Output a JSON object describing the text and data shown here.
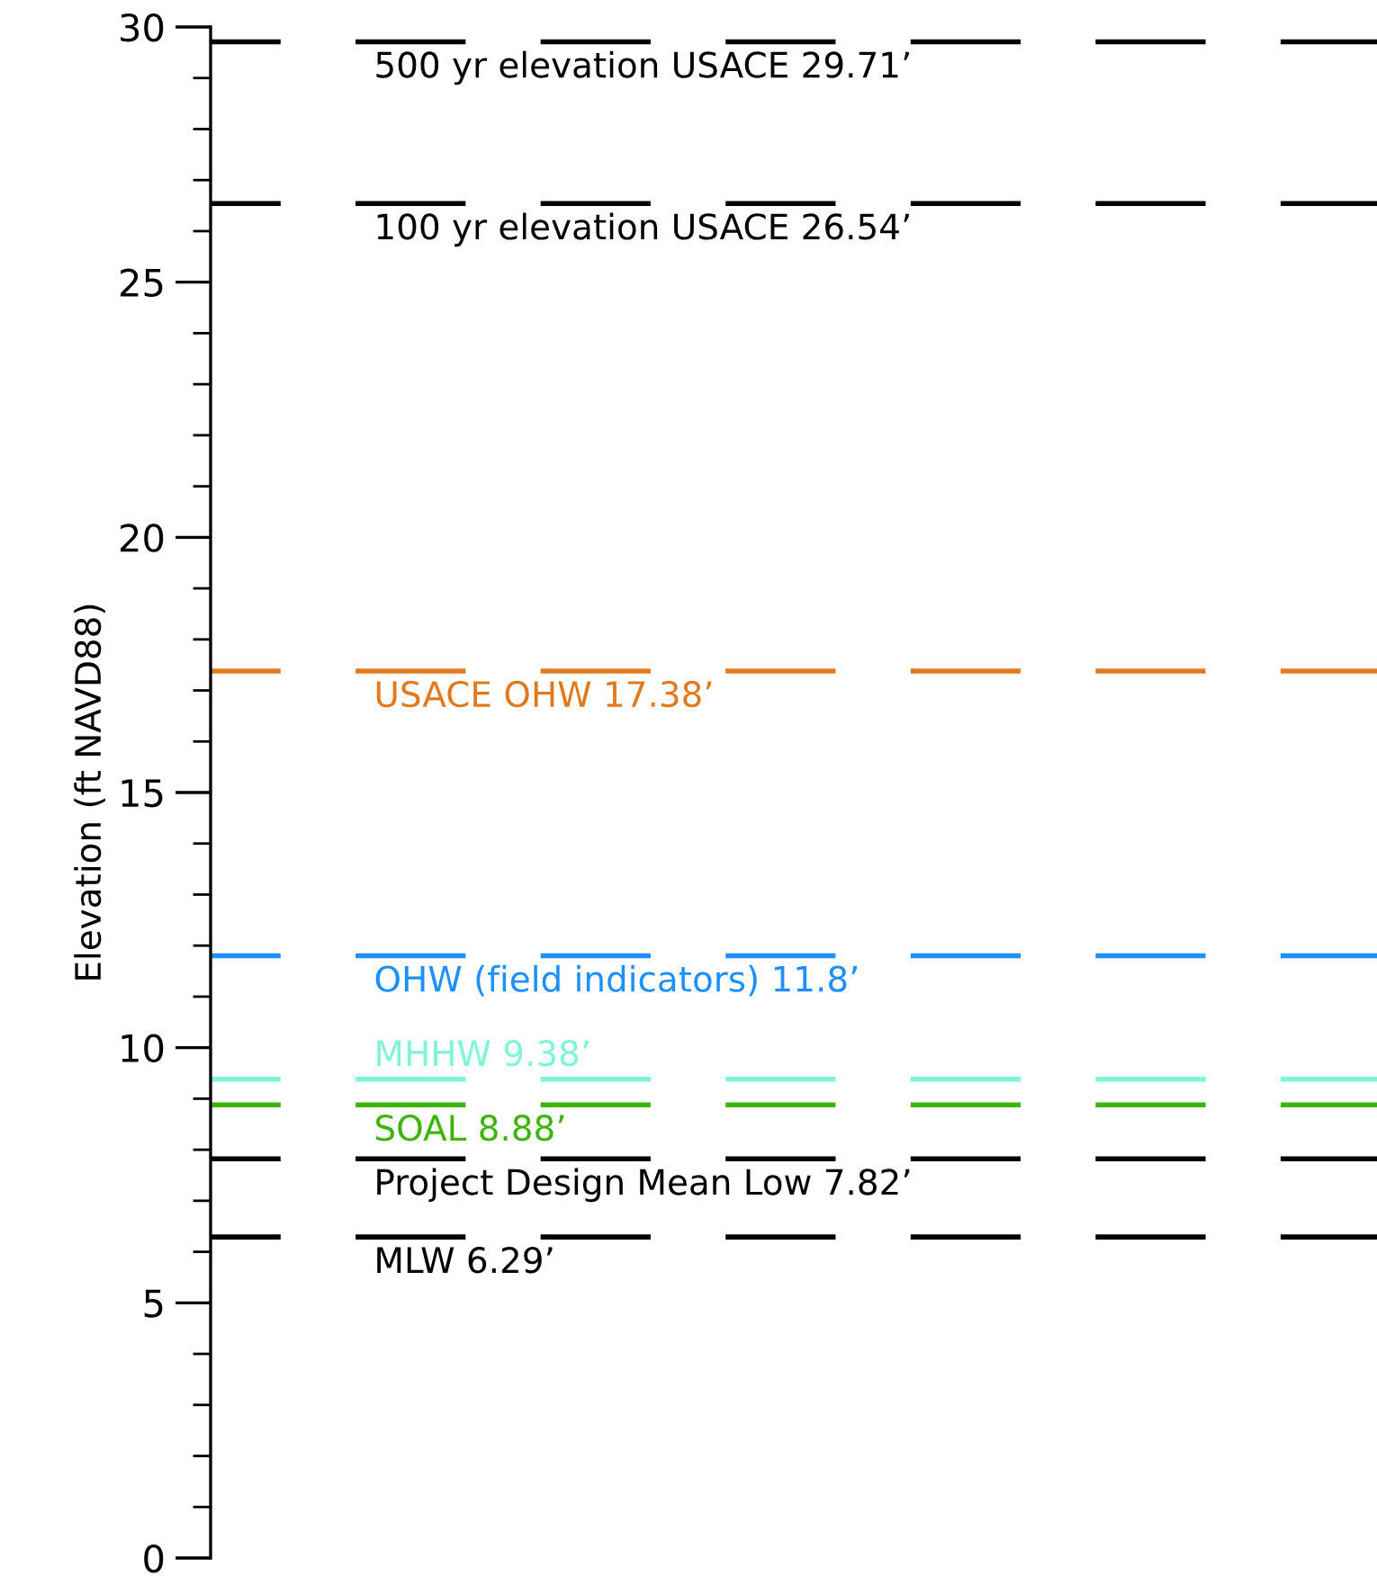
{
  "chart_data": {
    "type": "line",
    "ylabel": "Elevation (ft NAVD88)",
    "ylim": [
      0,
      30
    ],
    "tick_labels": "y",
    "categories": [
      null,
      null
    ],
    "yticks": [
      0,
      {
        "value": 1,
        "label": null
      },
      {
        "value": 2,
        "label": null
      },
      {
        "value": 3,
        "label": null
      },
      {
        "value": 4,
        "label": null
      },
      5,
      {
        "value": 6,
        "label": null
      },
      {
        "value": 7,
        "label": null
      },
      {
        "value": 8,
        "label": null
      },
      {
        "value": 9,
        "label": null
      },
      10,
      {
        "value": 11,
        "label": null
      },
      {
        "value": 12,
        "label": null
      },
      {
        "value": 13,
        "label": null
      },
      {
        "value": 14,
        "label": null
      },
      15,
      {
        "value": 16,
        "label": null
      },
      {
        "value": 17,
        "label": null
      },
      {
        "value": 18,
        "label": null
      },
      {
        "value": 19,
        "label": null
      },
      20,
      {
        "value": 21,
        "label": null
      },
      {
        "value": 22,
        "label": null
      },
      {
        "value": 23,
        "label": null
      },
      {
        "value": 24,
        "label": null
      },
      25,
      {
        "value": 26,
        "label": null
      },
      {
        "value": 27,
        "label": null
      },
      {
        "value": 28,
        "label": null
      },
      {
        "value": 29,
        "label": null
      },
      30
    ],
    "ref_lines": [
      {
        "axis": "y",
        "value": 29.71,
        "label": "500 yr elevation USACE 29.71’",
        "color": "#000000",
        "line_style": "dashed"
      },
      {
        "axis": "y",
        "value": 26.54,
        "label": "100 yr elevation USACE 26.54’",
        "color": "#000000",
        "line_style": "dashed"
      },
      {
        "axis": "y",
        "value": 17.38,
        "label": "USACE OHW 17.38’",
        "color": "#e07a1f",
        "line_style": "dashed"
      },
      {
        "axis": "y",
        "value": 11.8,
        "label": "OHW (field indicators) 11.8’",
        "color": "#1e8fff",
        "line_style": "dashed"
      },
      {
        "axis": "y",
        "value": 9.38,
        "label": "MHHW 9.38’",
        "color": "#7ff5d6",
        "line_style": "dashed"
      },
      {
        "axis": "y",
        "value": 8.88,
        "label": "SOAL 8.88’",
        "color": "#3cb40a",
        "line_style": "dashed"
      },
      {
        "axis": "y",
        "value": 7.82,
        "label": "Project Design Mean Low 7.82’",
        "color": "#000000",
        "line_style": "dashed"
      },
      {
        "axis": "y",
        "value": 6.29,
        "label": "MLW 6.29’",
        "color": "#000000",
        "line_style": "dashed"
      }
    ]
  }
}
